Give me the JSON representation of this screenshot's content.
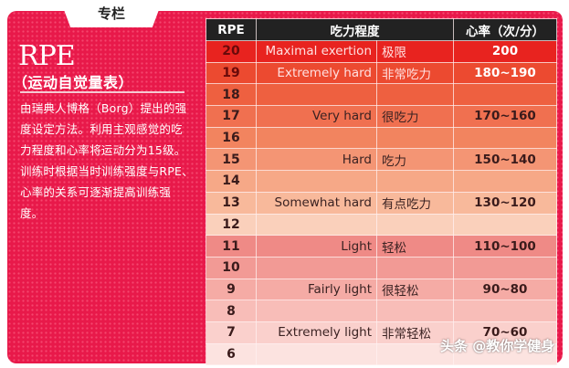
{
  "column": {
    "tab_label": "专栏",
    "title": "RPE",
    "subtitle": "（运动自觉量表）",
    "description": "由瑞典人博格（Borg）提出的强度设定方法。利用主观感觉的吃力程度和心率将运动分为15级。训练时根据当时训练强度与RPE、心率的关系可逐渐提高训练强度。"
  },
  "table": {
    "headers": [
      "RPE",
      "吃力程度",
      "心率（次/分）"
    ],
    "rows": [
      {
        "rpe": "20",
        "en": "Maximal exertion",
        "cn": "极限",
        "hr": "200",
        "color": "#e8231f"
      },
      {
        "rpe": "19",
        "en": "Extremely hard",
        "cn": "非常吃力",
        "hr": "180~190",
        "color": "#ec4a30"
      },
      {
        "rpe": "18",
        "en": "",
        "cn": "",
        "hr": "",
        "color": "#ee6040"
      },
      {
        "rpe": "17",
        "en": "Very hard",
        "cn": "很吃力",
        "hr": "170~160",
        "color": "#f07050"
      },
      {
        "rpe": "16",
        "en": "",
        "cn": "",
        "hr": "",
        "color": "#f2845f"
      },
      {
        "rpe": "15",
        "en": "Hard",
        "cn": "吃力",
        "hr": "150~140",
        "color": "#f49574"
      },
      {
        "rpe": "14",
        "en": "",
        "cn": "",
        "hr": "",
        "color": "#f6a887"
      },
      {
        "rpe": "13",
        "en": "Somewhat hard",
        "cn": "有点吃力",
        "hr": "130~120",
        "color": "#f8b99b"
      },
      {
        "rpe": "12",
        "en": "",
        "cn": "",
        "hr": "",
        "color": "#fad0bb"
      },
      {
        "rpe": "11",
        "en": "Light",
        "cn": "轻松",
        "hr": "110~100",
        "color": "#ef8a86"
      },
      {
        "rpe": "10",
        "en": "",
        "cn": "",
        "hr": "",
        "color": "#f29a95"
      },
      {
        "rpe": "9",
        "en": "Fairly light",
        "cn": "很轻松",
        "hr": "90~80",
        "color": "#f5aba5"
      },
      {
        "rpe": "8",
        "en": "",
        "cn": "",
        "hr": "",
        "color": "#f8bdb8"
      },
      {
        "rpe": "7",
        "en": "Extremely light",
        "cn": "非常轻松",
        "hr": "70~60",
        "color": "#fad0cc"
      },
      {
        "rpe": "6",
        "en": "",
        "cn": "",
        "hr": "",
        "color": "#fce3e0"
      }
    ]
  },
  "watermark": "头条 @教你学健身",
  "colors": {
    "panel": "#e8194a",
    "header": "#222222"
  }
}
